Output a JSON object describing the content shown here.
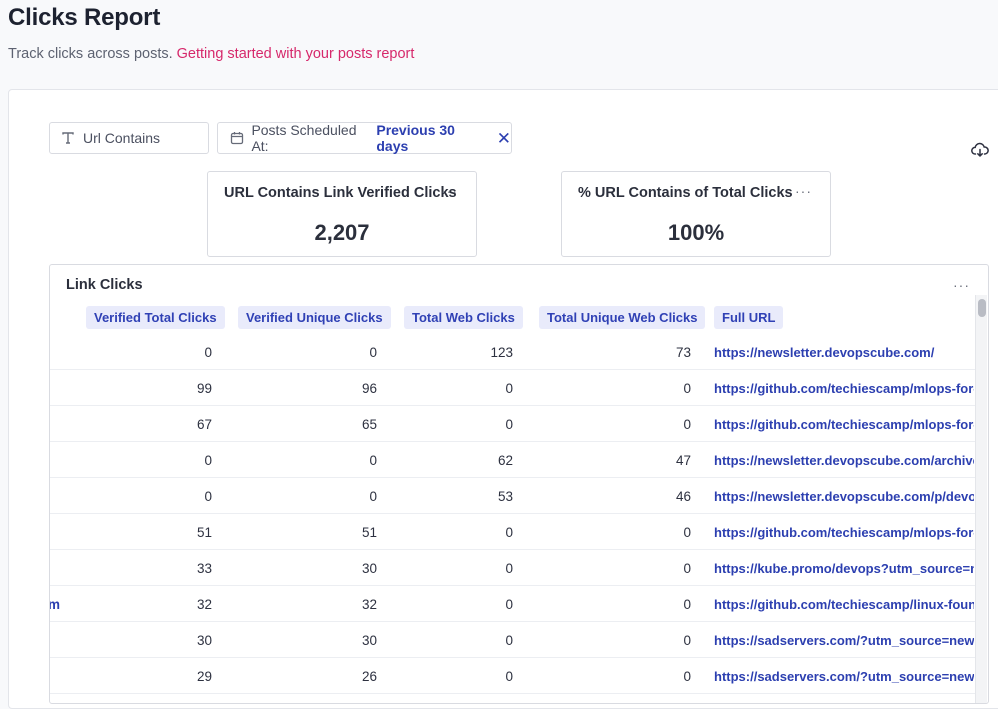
{
  "page": {
    "title": "Clicks Report",
    "subtitle": "Track clicks across posts.",
    "help_link": "Getting started with your posts report"
  },
  "filters": {
    "url_filter_label": "Url Contains",
    "date_filter_label": "Posts Scheduled At:",
    "date_filter_value": "Previous 30 days",
    "close_symbol": "✕"
  },
  "metrics": [
    {
      "title": "URL Contains Link Verified Clicks",
      "value": "2,207"
    },
    {
      "title": "% URL Contains of Total Clicks",
      "value": "100%"
    }
  ],
  "table": {
    "title": "Link Clicks",
    "more_symbol": "···",
    "columns": [
      "Verified Total Clicks",
      "Verified Unique Clicks",
      "Total Web Clicks",
      "Total Unique Web Clicks",
      "Full URL"
    ],
    "rows": [
      {
        "frag": "",
        "c": [
          "0",
          "0",
          "123",
          "73"
        ],
        "url": "https://newsletter.devopscube.com/"
      },
      {
        "frag": "",
        "c": [
          "99",
          "96",
          "0",
          "0"
        ],
        "url": "https://github.com/techiescamp/mlops-for-devops"
      },
      {
        "frag": "",
        "c": [
          "67",
          "65",
          "0",
          "0"
        ],
        "url": "https://github.com/techiescamp/mlops-for-devops"
      },
      {
        "frag": "",
        "c": [
          "0",
          "0",
          "62",
          "47"
        ],
        "url": "https://newsletter.devopscube.com/archive"
      },
      {
        "frag": "",
        "c": [
          "0",
          "0",
          "53",
          "46"
        ],
        "url": "https://newsletter.devopscube.com/p/devops-t"
      },
      {
        "frag": "",
        "c": [
          "51",
          "51",
          "0",
          "0"
        ],
        "url": "https://github.com/techiescamp/mlops-for-devops"
      },
      {
        "frag": "",
        "c": [
          "33",
          "30",
          "0",
          "0"
        ],
        "url": "https://kube.promo/devops?utm_source=newsletter"
      },
      {
        "frag": "m",
        "c": [
          "32",
          "32",
          "0",
          "0"
        ],
        "url": "https://github.com/techiescamp/linux-foundation"
      },
      {
        "frag": "",
        "c": [
          "30",
          "30",
          "0",
          "0"
        ],
        "url": "https://sadservers.com/?utm_source=newsletter"
      },
      {
        "frag": "",
        "c": [
          "29",
          "26",
          "0",
          "0"
        ],
        "url": "https://sadservers.com/?utm_source=newsletter"
      }
    ]
  }
}
